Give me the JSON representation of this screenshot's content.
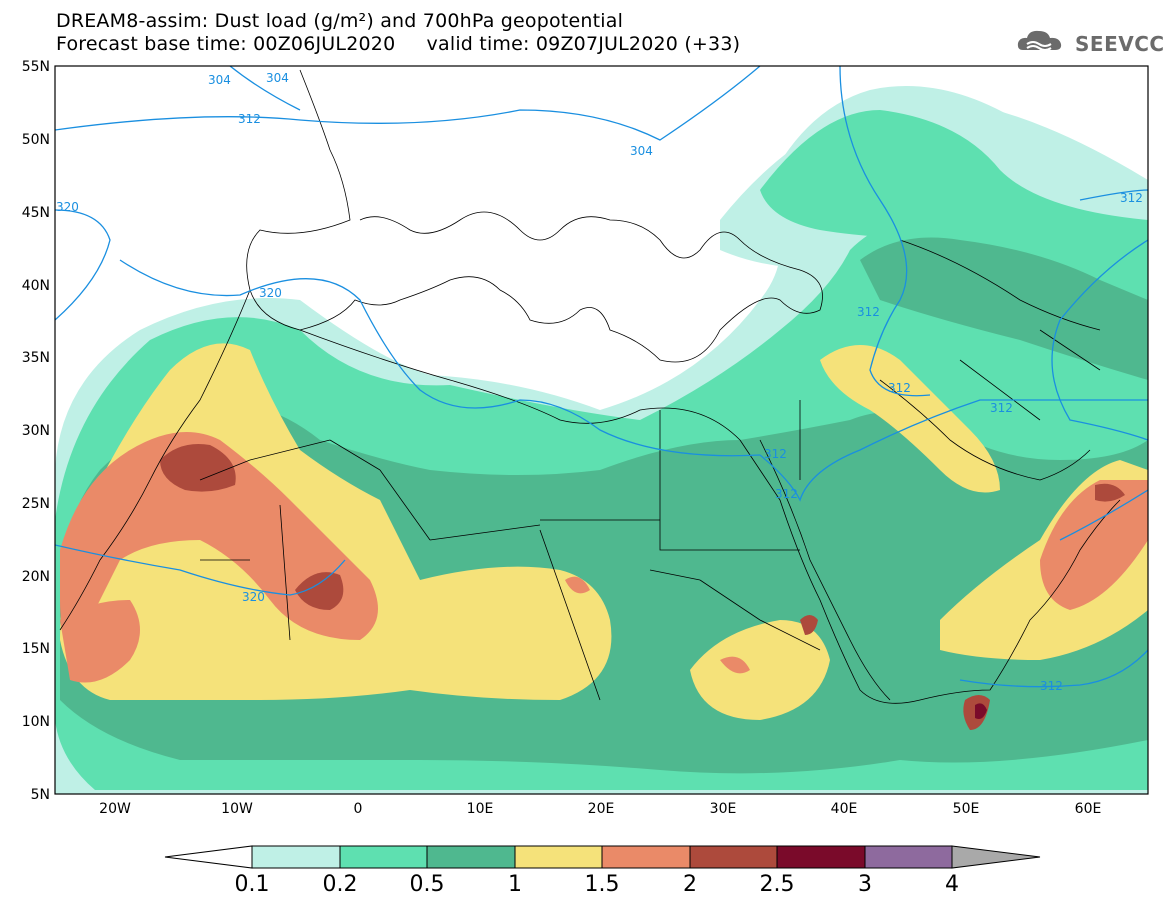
{
  "header": {
    "line1": "DREAM8-assim: Dust load (g/m²) and 700hPa geopotential",
    "line2": "Forecast base time: 00Z06JUL2020     valid time: 09Z07JUL2020 (+33)"
  },
  "logo": {
    "text": "SEEVCCC",
    "icon": "cloud-logo-icon",
    "color": "#6b6b6b"
  },
  "axes": {
    "lat_labels": [
      "55N",
      "50N",
      "45N",
      "40N",
      "35N",
      "30N",
      "25N",
      "20N",
      "15N",
      "10N",
      "5N"
    ],
    "lon_labels": [
      "20W",
      "10W",
      "0",
      "10E",
      "20E",
      "30E",
      "40E",
      "50E",
      "60E"
    ]
  },
  "contour_labels": [
    "304",
    "304",
    "312",
    "304",
    "320",
    "320",
    "320",
    "312",
    "312",
    "312",
    "312",
    "312",
    "312",
    "312"
  ],
  "colorbar": {
    "labels": [
      "0.1",
      "0.2",
      "0.5",
      "1",
      "1.5",
      "2",
      "2.5",
      "3",
      "4"
    ],
    "colors": [
      "#bff0e6",
      "#5ee0b0",
      "#4fb88f",
      "#f5e27a",
      "#ea8a68",
      "#ad4a3c",
      "#7a0a2a",
      "#8e6a9e"
    ],
    "lower_extension_color": "#ffffff",
    "upper_extension_color": "#a9a9a9"
  },
  "colors": {
    "contour_line": "#1a8fe0",
    "border_line": "#000000"
  }
}
